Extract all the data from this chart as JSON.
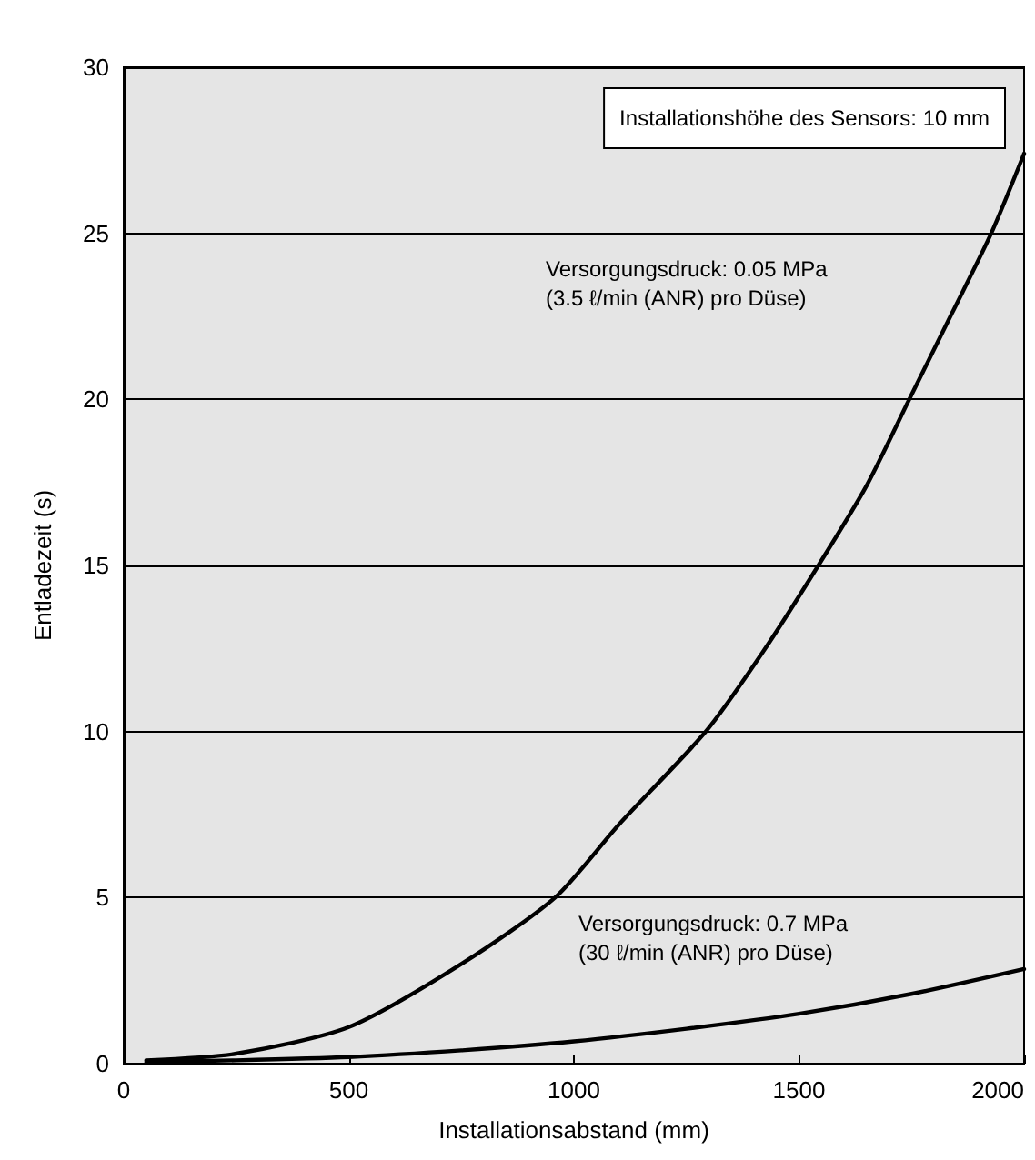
{
  "chart_data": {
    "type": "line",
    "xlabel": "Installationsabstand (mm)",
    "ylabel": "Entladezeit (s)",
    "xlim": [
      0,
      2000
    ],
    "xticks": [
      0,
      500,
      1000,
      1500,
      2000
    ],
    "ylim": [
      0,
      30
    ],
    "yticks": [
      0,
      5,
      10,
      15,
      20,
      25,
      30
    ],
    "grid": "y",
    "marker": "none",
    "line_style": "solid",
    "series": [
      {
        "color": "#000000",
        "x": [
          50,
          250,
          500,
          750,
          958,
          1100,
          1293,
          1420,
          1543,
          1650,
          1745,
          1840,
          1927,
          2000
        ],
        "values": [
          0.1,
          0.3,
          1.1,
          3.0,
          5,
          7.2,
          10,
          12.4,
          15,
          17.4,
          20,
          22.6,
          25,
          27.4
        ]
      },
      {
        "color": "#000000",
        "x": [
          50,
          250,
          500,
          750,
          1000,
          1250,
          1500,
          1750,
          2000
        ],
        "values": [
          0.05,
          0.1,
          0.2,
          0.4,
          0.67,
          1.05,
          1.5,
          2.1,
          2.85
        ]
      }
    ],
    "annotations": [
      "Installationshöhe des Sensors: 10 mm",
      "Versorgungsdruck: 0.05 MPa\n(3.5 ℓ/min (ANR) pro Düse)",
      "Versorgungsdruck: 0.7 MPa\n(30 ℓ/min (ANR) pro Düse)"
    ]
  }
}
